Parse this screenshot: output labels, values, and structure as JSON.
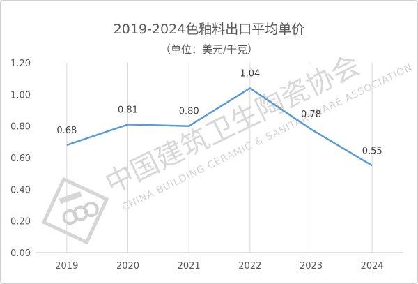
{
  "chart_data": {
    "type": "line",
    "title": "2019-2024色釉料出口平均单价",
    "subtitle": "（单位：美元/千克）",
    "categories": [
      "2019",
      "2020",
      "2021",
      "2022",
      "2023",
      "2024"
    ],
    "series": [
      {
        "values": [
          0.68,
          0.81,
          0.8,
          1.04,
          0.78,
          0.55
        ]
      }
    ],
    "data_labels": [
      "0.68",
      "0.81",
      "0.80",
      "1.04",
      "0.78",
      "0.55"
    ],
    "y_ticks": [
      "0.00",
      "0.20",
      "0.40",
      "0.60",
      "0.80",
      "1.00",
      "1.20"
    ],
    "ylim": [
      0,
      1.2
    ],
    "grid": "vertical",
    "line_color": "#5b9bd5"
  },
  "watermark": {
    "org_name_cn": "中国建筑卫生陶瓷协会",
    "org_name_en": "CHINA BUILDING CERAMIC & SANITARYWARE ASSOCIATION"
  }
}
